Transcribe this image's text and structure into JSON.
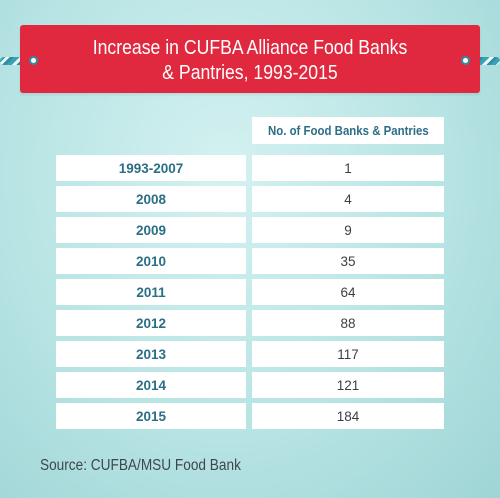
{
  "chart_data": {
    "type": "table",
    "title": "Increase in CUFBA Alliance Food Banks & Pantries, 1993-2015",
    "columns": [
      "",
      "No. of Food Banks & Pantries"
    ],
    "categories": [
      "1993-2007",
      "2008",
      "2009",
      "2010",
      "2011",
      "2012",
      "2013",
      "2014",
      "2015"
    ],
    "values": [
      1,
      4,
      9,
      35,
      64,
      88,
      117,
      121,
      184
    ]
  },
  "source": "Source: CUFBA/MSU Food Bank",
  "colors": {
    "banner": "#e0293f",
    "year_text": "#2c6e86",
    "value_text": "#3b3f44",
    "background": "#c6eaea"
  }
}
